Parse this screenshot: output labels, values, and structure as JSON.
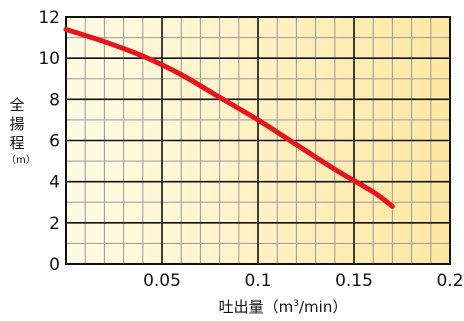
{
  "chart_data": {
    "type": "line",
    "title": "",
    "xlabel_prefix": "吐出量（m",
    "xlabel_sup": "3",
    "xlabel_suffix": "/min）",
    "ylabel_main": "全揚程",
    "ylabel_unit": "（m）",
    "xlim": [
      0,
      0.2
    ],
    "ylim": [
      0,
      12
    ],
    "x_ticks": [
      0.05,
      0.1,
      0.15,
      0.2
    ],
    "x_tick_labels": [
      "0.05",
      "0.1",
      "0.15",
      "0.2"
    ],
    "y_ticks": [
      0,
      2,
      4,
      6,
      8,
      10,
      12
    ],
    "y_tick_labels": [
      "0",
      "2",
      "4",
      "6",
      "8",
      "10",
      "12"
    ],
    "grid": true,
    "series": [
      {
        "color": "#e8141c",
        "x": [
          0.0,
          0.02,
          0.04,
          0.06,
          0.08,
          0.1,
          0.12,
          0.14,
          0.16,
          0.17
        ],
        "y": [
          11.4,
          10.8,
          10.1,
          9.2,
          8.1,
          7.0,
          5.8,
          4.6,
          3.5,
          2.8
        ]
      }
    ],
    "colors": {
      "background_light": "#fffbe6",
      "background_dark": "#fde7a2",
      "grid_major": "#111111",
      "grid_minor": "#9a9a9a"
    }
  }
}
